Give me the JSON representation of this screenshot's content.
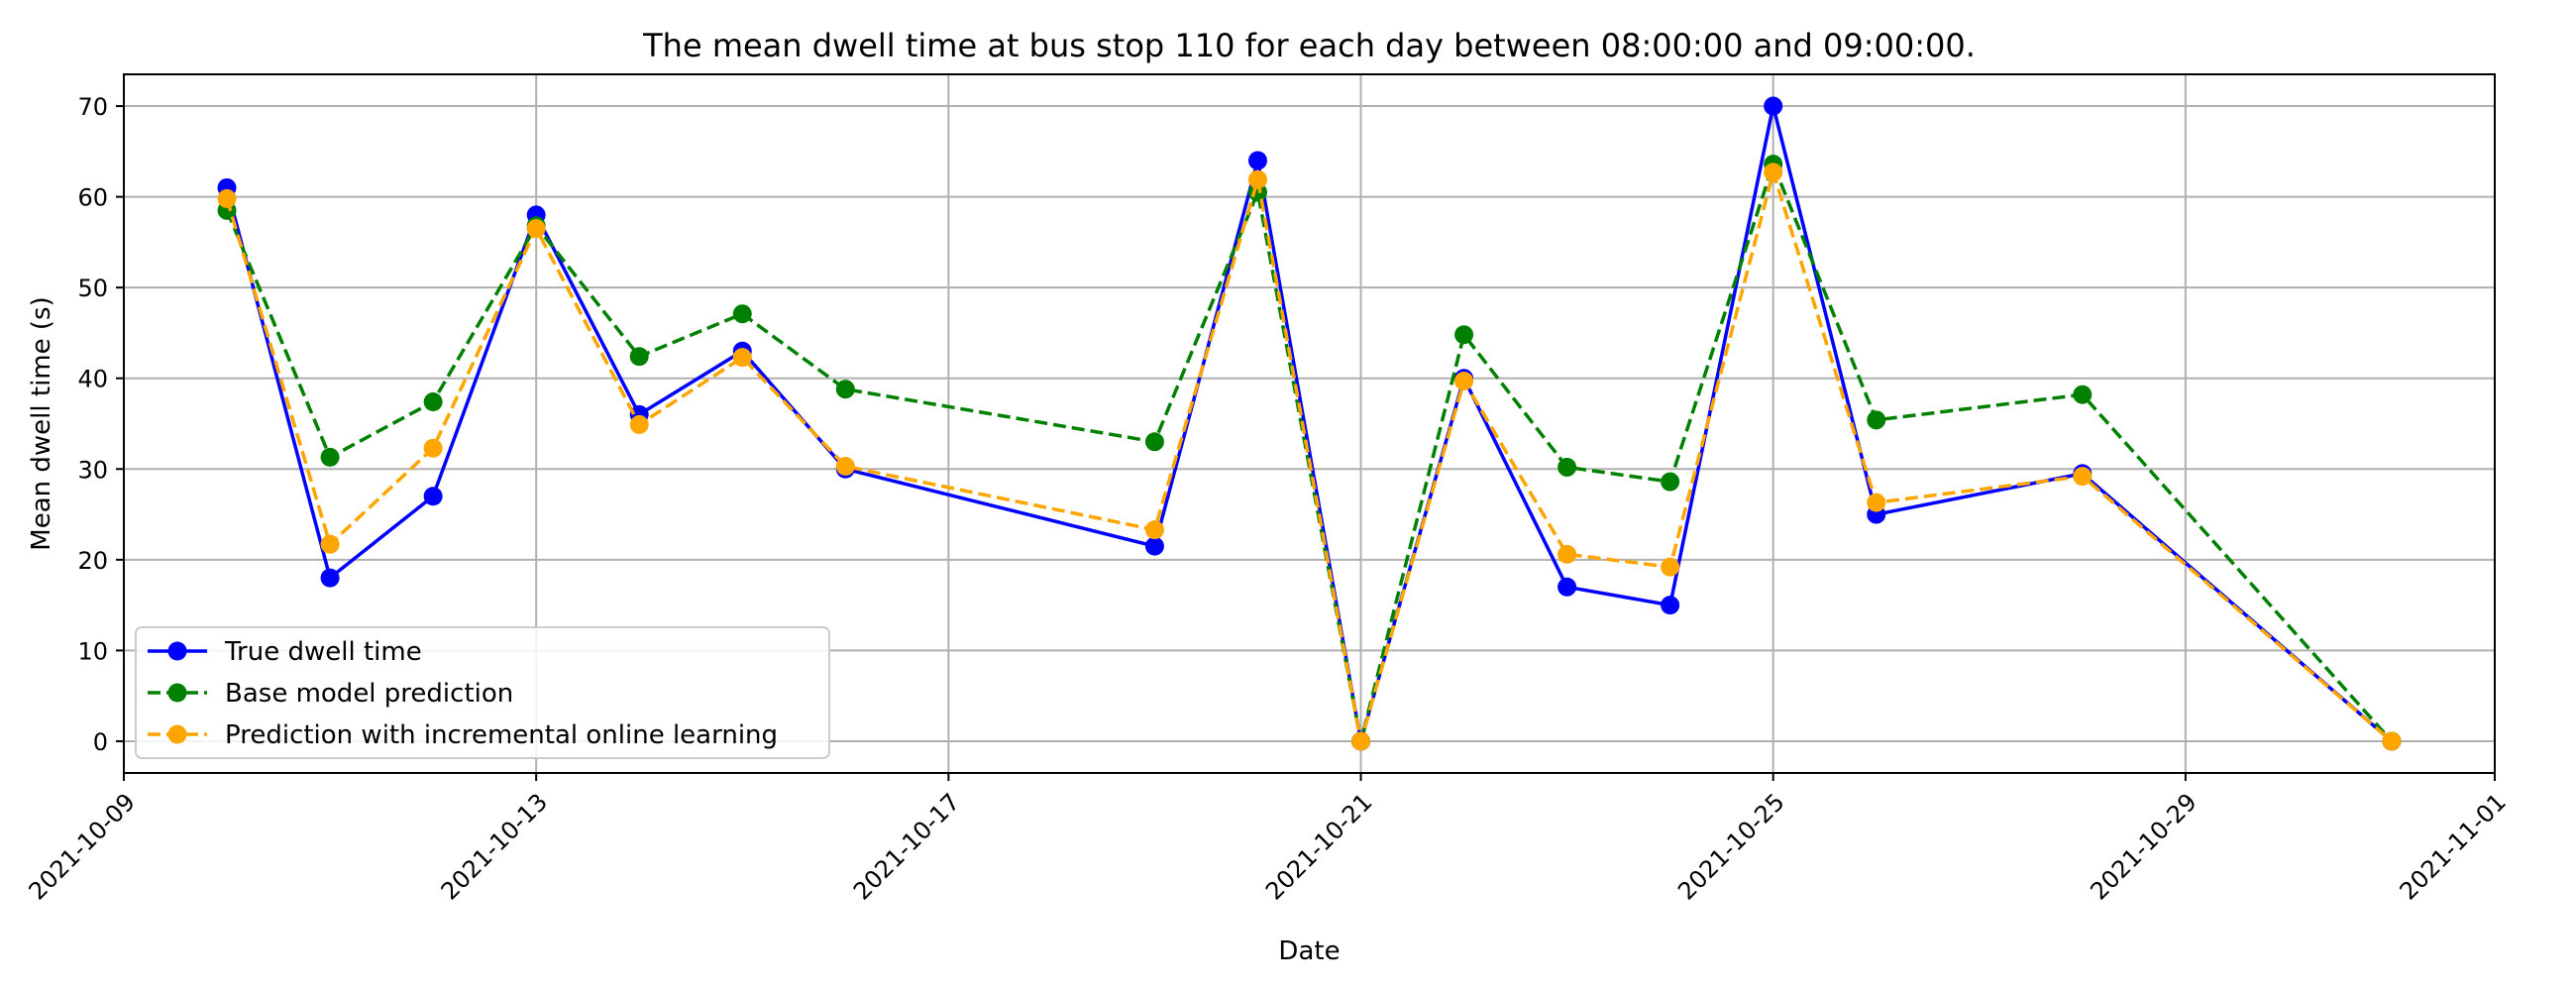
{
  "chart_data": {
    "type": "line",
    "title": "The mean dwell time at bus stop 110 for each day between 08:00:00 and 09:00:00.",
    "xlabel": "Date",
    "ylabel": "Mean dwell time (s)",
    "xlim": [
      "2021-10-09",
      "2021-11-01"
    ],
    "ylim": [
      -3.5,
      73.5
    ],
    "x_ticks": [
      "2021-10-09",
      "2021-10-13",
      "2021-10-17",
      "2021-10-21",
      "2021-10-25",
      "2021-10-29",
      "2021-11-01"
    ],
    "y_ticks": [
      0,
      10,
      20,
      30,
      40,
      50,
      60,
      70
    ],
    "grid": true,
    "legend_position": "bottom-left",
    "x": [
      "2021-10-10",
      "2021-10-11",
      "2021-10-12",
      "2021-10-13",
      "2021-10-14",
      "2021-10-15",
      "2021-10-16",
      "2021-10-19",
      "2021-10-20",
      "2021-10-21",
      "2021-10-22",
      "2021-10-23",
      "2021-10-24",
      "2021-10-25",
      "2021-10-26",
      "2021-10-28",
      "2021-10-31"
    ],
    "series": [
      {
        "name": "True dwell time",
        "color": "#0000ff",
        "line_style": "solid",
        "values": [
          61,
          18,
          27,
          58,
          36,
          43,
          30,
          21.5,
          64,
          0,
          40,
          17,
          15,
          70,
          25,
          29.5,
          0
        ]
      },
      {
        "name": "Base model prediction",
        "color": "#008000",
        "line_style": "dashed",
        "values": [
          58.5,
          31.3,
          37.4,
          56.8,
          42.4,
          47.1,
          38.8,
          33,
          60.5,
          0,
          44.8,
          30.2,
          28.6,
          63.6,
          35.4,
          38.2,
          0
        ]
      },
      {
        "name": "Prediction with incremental online learning",
        "color": "#ffa500",
        "line_style": "dashed",
        "values": [
          59.8,
          21.7,
          32.3,
          56.5,
          34.9,
          42.3,
          30.3,
          23.3,
          61.9,
          0,
          39.7,
          20.6,
          19.2,
          62.7,
          26.3,
          29.2,
          0
        ]
      }
    ]
  }
}
